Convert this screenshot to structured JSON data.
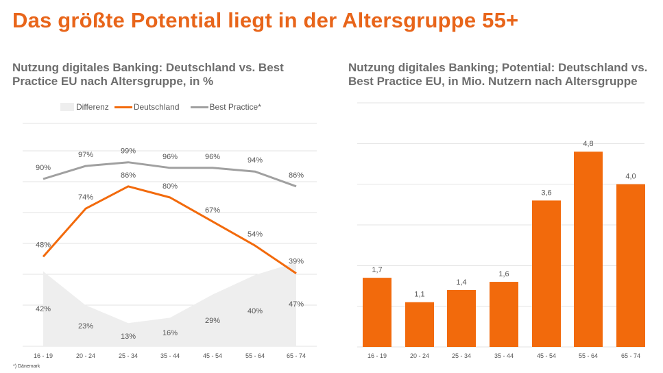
{
  "headline": "Das größte Potential liegt in der Altersgruppe 55+",
  "footnote": "*) Dänemark",
  "colors": {
    "orange": "#f26a0c",
    "gray_line": "#a0a0a0",
    "area": "#eeeeee",
    "headline": "#e8651a"
  },
  "chart_data": [
    {
      "type": "line",
      "title_line1": "Nutzung digitales Banking: Deutschland vs. Best",
      "title_line2": "Practice EU nach Altersgruppe, in %",
      "legend_position": "top",
      "legend": [
        "Differenz",
        "Deutschland",
        "Best Practice*"
      ],
      "categories": [
        "16 - 19",
        "20 - 24",
        "25 - 34",
        "35 - 44",
        "45 - 54",
        "55 - 64",
        "65 - 74"
      ],
      "series": [
        {
          "name": "Differenz",
          "kind": "area",
          "values": [
            42,
            23,
            13,
            16,
            29,
            40,
            47
          ],
          "labels": [
            "42%",
            "23%",
            "13%",
            "16%",
            "29%",
            "40%",
            "47%"
          ]
        },
        {
          "name": "Deutschland",
          "kind": "line",
          "values": [
            48,
            74,
            86,
            80,
            67,
            54,
            39
          ],
          "labels": [
            "48%",
            "74%",
            "86%",
            "80%",
            "67%",
            "54%",
            "39%"
          ]
        },
        {
          "name": "Best Practice*",
          "kind": "line",
          "values": [
            90,
            97,
            99,
            96,
            96,
            94,
            86
          ],
          "labels": [
            "90%",
            "97%",
            "99%",
            "96%",
            "96%",
            "94%",
            "86%"
          ]
        }
      ],
      "grid": true
    },
    {
      "type": "bar",
      "title_line1": "Nutzung digitales Banking; Potential: Deutschland vs.",
      "title_line2": "Best Practice EU, in Mio. Nutzern nach Altersgruppe",
      "categories": [
        "16 - 19",
        "20 - 24",
        "25 - 34",
        "35 - 44",
        "45 - 54",
        "55 - 64",
        "65 - 74"
      ],
      "values": [
        1.7,
        1.1,
        1.4,
        1.6,
        3.6,
        4.8,
        4.0
      ],
      "labels": [
        "1,7",
        "1,1",
        "1,4",
        "1,6",
        "3,6",
        "4,8",
        "4,0"
      ],
      "ylim": [
        0,
        6
      ],
      "grid": true
    }
  ]
}
